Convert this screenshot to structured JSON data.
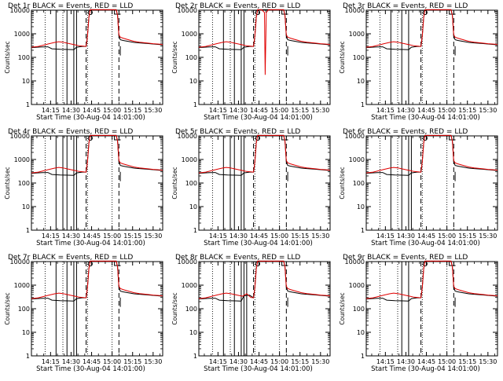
{
  "figure": {
    "background": "#ffffff"
  },
  "colors": {
    "events": "#000000",
    "lld": "#e00000",
    "axes": "#000000"
  },
  "chart_data": [
    {
      "type": "line",
      "title": "Det 1r BLACK = Events, RED = LLD",
      "xlabel": "Start Time (30-Aug-04 14:01:00)",
      "ylabel": "Counts/sec",
      "yscale": "log",
      "ylim": [
        1,
        10000
      ],
      "yticks": [
        1,
        10,
        100,
        1000,
        10000
      ],
      "yticklabels": [
        "1",
        "10",
        "100",
        "1000",
        "10000"
      ],
      "xticks": [
        "14:15",
        "14:30",
        "14:45",
        "15:00",
        "15:15",
        "15:30"
      ],
      "grid": false,
      "series": [
        {
          "name": "Events",
          "color": "#000000",
          "values": "see script"
        },
        {
          "name": "LLD",
          "color": "#e00000",
          "values": "see script"
        }
      ]
    },
    {
      "type": "line",
      "title": "Det 2r BLACK = Events, RED = LLD",
      "xlabel": "Start Time (30-Aug-04 14:01:00)",
      "ylabel": "Counts/sec",
      "yscale": "log",
      "ylim": [
        1,
        10000
      ],
      "yticks": [
        1,
        10,
        100,
        1000,
        10000
      ],
      "yticklabels": [
        "1",
        "10",
        "100",
        "1000",
        "10000"
      ],
      "xticks": [
        "14:15",
        "14:30",
        "14:45",
        "15:00",
        "15:15",
        "15:30"
      ]
    },
    {
      "type": "line",
      "title": "Det 3r BLACK = Events, RED = LLD",
      "xlabel": "Start Time (30-Aug-04 14:01:00)",
      "ylabel": "Counts/sec",
      "yscale": "log",
      "ylim": [
        1,
        10000
      ],
      "yticks": [
        1,
        10,
        100,
        1000,
        10000
      ],
      "yticklabels": [
        "1",
        "10",
        "100",
        "1000",
        "10000"
      ],
      "xticks": [
        "14:15",
        "14:30",
        "14:45",
        "15:00",
        "15:15",
        "15:30"
      ]
    },
    {
      "type": "line",
      "title": "Det 4r BLACK = Events, RED = LLD",
      "xlabel": "Start Time (30-Aug-04 14:01:00)",
      "ylabel": "Counts/sec",
      "yscale": "log",
      "ylim": [
        1,
        10000
      ],
      "yticks": [
        1,
        10,
        100,
        1000,
        10000
      ],
      "yticklabels": [
        "1",
        "10",
        "100",
        "1000",
        "10000"
      ],
      "xticks": [
        "14:15",
        "14:30",
        "14:45",
        "15:00",
        "15:15",
        "15:30"
      ]
    },
    {
      "type": "line",
      "title": "Det 5r BLACK = Events, RED = LLD",
      "xlabel": "Start Time (30-Aug-04 14:01:00)",
      "ylabel": "Counts/sec",
      "yscale": "log",
      "ylim": [
        1,
        10000
      ],
      "yticks": [
        1,
        10,
        100,
        1000,
        10000
      ],
      "yticklabels": [
        "1",
        "10",
        "100",
        "1000",
        "10000"
      ],
      "xticks": [
        "14:15",
        "14:30",
        "14:45",
        "15:00",
        "15:15",
        "15:30"
      ]
    },
    {
      "type": "line",
      "title": "Det 6r BLACK = Events, RED = LLD",
      "xlabel": "Start Time (30-Aug-04 14:01:00)",
      "ylabel": "Counts/sec",
      "yscale": "log",
      "ylim": [
        1,
        10000
      ],
      "yticks": [
        1,
        10,
        100,
        1000,
        10000
      ],
      "yticklabels": [
        "1",
        "10",
        "100",
        "1000",
        "10000"
      ],
      "xticks": [
        "14:15",
        "14:30",
        "14:45",
        "15:00",
        "15:15",
        "15:30"
      ]
    },
    {
      "type": "line",
      "title": "Det 7r BLACK = Events, RED = LLD",
      "xlabel": "Start Time (30-Aug-04 14:01:00)",
      "ylabel": "Counts/sec",
      "yscale": "log",
      "ylim": [
        1,
        10000
      ],
      "yticks": [
        1,
        10,
        100,
        1000,
        10000
      ],
      "yticklabels": [
        "1",
        "10",
        "100",
        "1000",
        "10000"
      ],
      "xticks": [
        "14:15",
        "14:30",
        "14:45",
        "15:00",
        "15:15",
        "15:30"
      ]
    },
    {
      "type": "line",
      "title": "Det 8r BLACK = Events, RED = LLD",
      "xlabel": "Start Time (30-Aug-04 14:01:00)",
      "ylabel": "Counts/sec",
      "yscale": "log",
      "ylim": [
        1,
        10000
      ],
      "yticks": [
        1,
        10,
        100,
        1000,
        10000
      ],
      "yticklabels": [
        "1",
        "10",
        "100",
        "1000",
        "10000"
      ],
      "xticks": [
        "14:15",
        "14:30",
        "14:45",
        "15:00",
        "15:15",
        "15:30"
      ]
    },
    {
      "type": "line",
      "title": "Det 9r BLACK = Events, RED = LLD",
      "xlabel": "Start Time (30-Aug-04 14:01:00)",
      "ylabel": "Counts/sec",
      "yscale": "log",
      "ylim": [
        1,
        10000
      ],
      "yticks": [
        1,
        10,
        100,
        1000,
        10000
      ],
      "yticklabels": [
        "1",
        "10",
        "100",
        "1000",
        "10000"
      ],
      "xticks": [
        "14:15",
        "14:30",
        "14:45",
        "15:00",
        "15:15",
        "15:30"
      ]
    }
  ]
}
